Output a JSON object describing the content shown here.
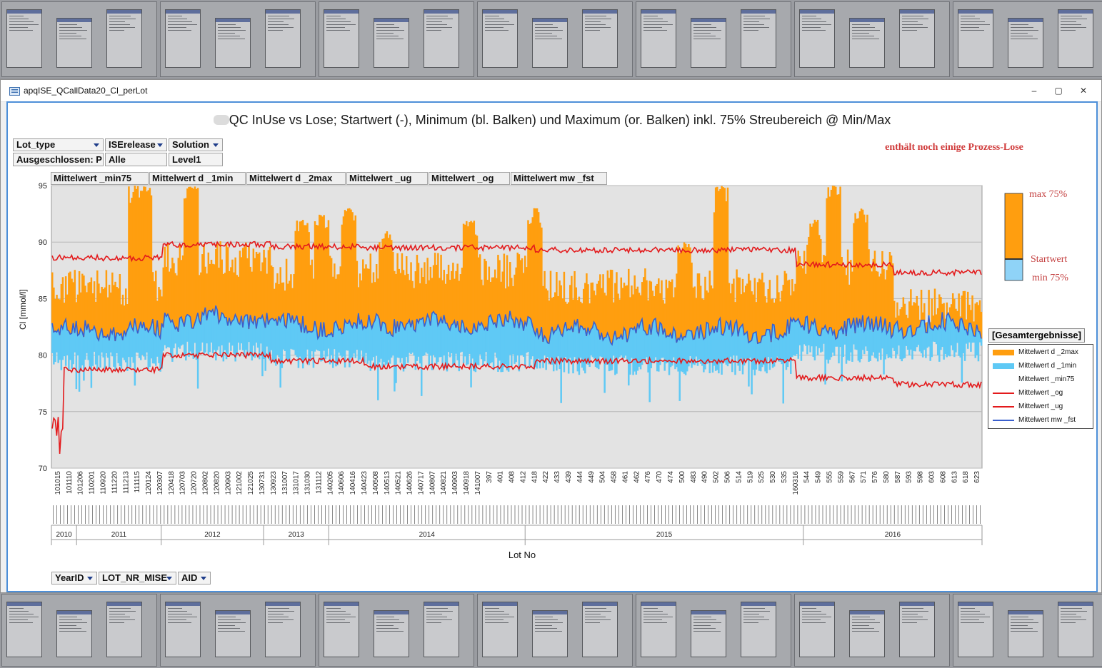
{
  "window": {
    "title": "apqISE_QCallData20_Cl_perLot",
    "minimize": "–",
    "maximize": "▢",
    "close": "✕"
  },
  "chart_title": "QC InUse vs Lose; Startwert (-), Minimum (bl. Balken) und Maximum (or. Balken) inkl. 75% Streubereich @ Min/Max",
  "note": "enthält noch einige Prozess-Lose",
  "filters": [
    {
      "field": "Lot_type",
      "value": "Ausgeschlossen: P"
    },
    {
      "field": "ISErelease",
      "value": "Alle"
    },
    {
      "field": "Solution",
      "value": "Level1"
    }
  ],
  "series_buttons": [
    "Mittelwert _min75",
    "Mittelwert d _1min",
    "Mittelwert d _2max",
    "Mittelwert _ug",
    "Mittelwert _og",
    "Mittelwert mw _fst"
  ],
  "row_buttons": [
    "YearID",
    "LOT_NR_MISE",
    "AID"
  ],
  "mini_legend": {
    "max": "max 75%",
    "start": "Startwert",
    "min": "min 75%"
  },
  "legend": {
    "title": "[Gesamtergebnisse]",
    "items": [
      {
        "label": "Mittelwert d _2max",
        "color": "#ff9e0f",
        "kind": "bar"
      },
      {
        "label": "Mittelwert d _1min",
        "color": "#5fc9f5",
        "kind": "bar"
      },
      {
        "label": "Mittelwert _min75",
        "color": "#ffffff",
        "kind": "none"
      },
      {
        "label": "Mittelwert _og",
        "color": "#e31a1c",
        "kind": "line"
      },
      {
        "label": "Mittelwert _ug",
        "color": "#e31a1c",
        "kind": "line"
      },
      {
        "label": "Mittelwert mw _fst",
        "color": "#3a5fcd",
        "kind": "line"
      }
    ]
  },
  "chart_data": {
    "type": "bar",
    "title": "QC InUse vs Lose; Startwert (-), Minimum (bl. Balken) und Maximum (or. Balken) inkl. 75% Streubereich @ Min/Max",
    "xlabel": "Lot No",
    "ylabel": "Cl [mmol/l]",
    "ylim": [
      70,
      95
    ],
    "yticks": [
      70,
      75,
      80,
      85,
      90,
      95
    ],
    "grid": true,
    "legend_position": "right",
    "x_tick_labels": [
      "101015",
      "101110",
      "101206",
      "110201",
      "110920",
      "111220",
      "111213",
      "111115",
      "120124",
      "120307",
      "120418",
      "120703",
      "120720",
      "120802",
      "120820",
      "120903",
      "121002",
      "121025",
      "130731",
      "130923",
      "131007",
      "131017",
      "131030",
      "131112",
      "140205",
      "140606",
      "140416",
      "140423",
      "140508",
      "140513",
      "140521",
      "140626",
      "140717",
      "140807",
      "140821",
      "140903",
      "140918",
      "141007",
      "397",
      "401",
      "408",
      "412",
      "418",
      "422",
      "433",
      "439",
      "444",
      "449",
      "504",
      "458",
      "461",
      "462",
      "476",
      "470",
      "474",
      "500",
      "483",
      "490",
      "502",
      "506",
      "514",
      "519",
      "525",
      "530",
      "535",
      "160316",
      "544",
      "549",
      "555",
      "559",
      "567",
      "571",
      "576",
      "580",
      "587",
      "593",
      "598",
      "603",
      "608",
      "613",
      "618",
      "623"
    ],
    "year_groups": [
      {
        "year": "2010",
        "from": 0.0,
        "to": 0.027
      },
      {
        "year": "2011",
        "from": 0.027,
        "to": 0.118
      },
      {
        "year": "2012",
        "from": 0.118,
        "to": 0.228
      },
      {
        "year": "2013",
        "from": 0.228,
        "to": 0.298
      },
      {
        "year": "2014",
        "from": 0.298,
        "to": 0.509
      },
      {
        "year": "2015",
        "from": 0.509,
        "to": 0.808
      },
      {
        "year": "2016",
        "from": 0.808,
        "to": 1.0
      }
    ],
    "segments": [
      {
        "from": 0.0,
        "to": 0.12,
        "og": 88.6,
        "ug": 78.7,
        "fst": 82.2,
        "max": 85.5,
        "min": 80.3
      },
      {
        "from": 0.12,
        "to": 0.235,
        "og": 89.8,
        "ug": 80.0,
        "fst": 83.2,
        "max": 88.0,
        "min": 81.2
      },
      {
        "from": 0.235,
        "to": 0.335,
        "og": 89.6,
        "ug": 79.5,
        "fst": 82.6,
        "max": 86.8,
        "min": 80.6
      },
      {
        "from": 0.335,
        "to": 0.52,
        "og": 89.5,
        "ug": 79.0,
        "fst": 82.8,
        "max": 87.0,
        "min": 80.3
      },
      {
        "from": 0.52,
        "to": 0.8,
        "og": 89.3,
        "ug": 79.5,
        "fst": 82.1,
        "max": 85.6,
        "min": 80.0
      },
      {
        "from": 0.8,
        "to": 0.905,
        "og": 88.0,
        "ug": 78.0,
        "fst": 82.5,
        "max": 87.3,
        "min": 81.0
      },
      {
        "from": 0.905,
        "to": 1.0,
        "og": 87.3,
        "ug": 77.4,
        "fst": 82.6,
        "max": 84.0,
        "min": 81.2
      }
    ],
    "peaks": [
      {
        "at": 0.09,
        "max": 95
      },
      {
        "at": 0.1,
        "max": 95
      },
      {
        "at": 0.15,
        "max": 95
      },
      {
        "at": 0.27,
        "max": 92
      },
      {
        "at": 0.29,
        "max": 92.5
      },
      {
        "at": 0.32,
        "max": 93
      },
      {
        "at": 0.36,
        "max": 91
      },
      {
        "at": 0.45,
        "max": 92
      },
      {
        "at": 0.52,
        "max": 93
      },
      {
        "at": 0.72,
        "max": 95
      },
      {
        "at": 0.68,
        "max": 90
      },
      {
        "at": 0.82,
        "max": 92
      },
      {
        "at": 0.84,
        "max": 95
      },
      {
        "at": 0.87,
        "max": 93
      }
    ]
  }
}
